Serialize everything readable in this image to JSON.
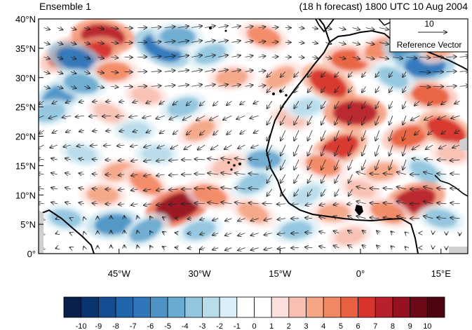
{
  "title_left": "Ensemble 1",
  "title_right": "(18 h forecast) 1800 UTC 10 Aug 2004",
  "reference_vector": {
    "value": "10",
    "label": "Reference Vector"
  },
  "map": {
    "lon_range": [
      -60,
      20
    ],
    "lat_range": [
      0,
      40
    ],
    "lat_ticks": [
      {
        "value": 40,
        "label": "40°N"
      },
      {
        "value": 35,
        "label": "35°N"
      },
      {
        "value": 30,
        "label": "30°N"
      },
      {
        "value": 25,
        "label": "25°N"
      },
      {
        "value": 20,
        "label": "20°N"
      },
      {
        "value": 15,
        "label": "15°N"
      },
      {
        "value": 10,
        "label": "10°N"
      },
      {
        "value": 5,
        "label": "5°N"
      },
      {
        "value": 0,
        "label": "0°"
      }
    ],
    "lon_ticks": [
      {
        "value": -45,
        "label": "45°W"
      },
      {
        "value": -30,
        "label": "30°W"
      },
      {
        "value": -15,
        "label": "15°W"
      },
      {
        "value": 0,
        "label": "0°"
      },
      {
        "value": 15,
        "label": "15°E"
      }
    ],
    "anomalies": [
      {
        "lon": -55,
        "lat": 34,
        "v": 5
      },
      {
        "lon": -48,
        "lat": 37,
        "v": 7
      },
      {
        "lon": -50,
        "lat": 34,
        "v": 6
      },
      {
        "lon": -53,
        "lat": 33,
        "v": -6
      },
      {
        "lon": -46,
        "lat": 31,
        "v": 4
      },
      {
        "lon": -56,
        "lat": 27,
        "v": -5
      },
      {
        "lon": -52,
        "lat": 29,
        "v": -4
      },
      {
        "lon": -58,
        "lat": 24,
        "v": -3
      },
      {
        "lon": -37,
        "lat": 35,
        "v": -6
      },
      {
        "lon": -34,
        "lat": 37,
        "v": -4
      },
      {
        "lon": -28,
        "lat": 34,
        "v": -3
      },
      {
        "lon": -18,
        "lat": 37,
        "v": 4
      },
      {
        "lon": -24,
        "lat": 30,
        "v": 3
      },
      {
        "lon": -15,
        "lat": 30,
        "v": 3
      },
      {
        "lon": -40,
        "lat": 27,
        "v": 2
      },
      {
        "lon": -33,
        "lat": 25,
        "v": -3
      },
      {
        "lon": -47,
        "lat": 24,
        "v": 2
      },
      {
        "lon": -42,
        "lat": 21,
        "v": -2
      },
      {
        "lon": -30,
        "lat": 21,
        "v": 3
      },
      {
        "lon": -52,
        "lat": 17,
        "v": -2
      },
      {
        "lon": -45,
        "lat": 14,
        "v": 3
      },
      {
        "lon": -40,
        "lat": 12,
        "v": 4
      },
      {
        "lon": -48,
        "lat": 10,
        "v": 3
      },
      {
        "lon": -34,
        "lat": 8,
        "v": 8
      },
      {
        "lon": -28,
        "lat": 10,
        "v": 4
      },
      {
        "lon": -46,
        "lat": 5,
        "v": -5
      },
      {
        "lon": -40,
        "lat": 4,
        "v": -4
      },
      {
        "lon": -55,
        "lat": 6,
        "v": -3
      },
      {
        "lon": -30,
        "lat": 4,
        "v": -3
      },
      {
        "lon": -20,
        "lat": 7,
        "v": 3
      },
      {
        "lon": -18,
        "lat": 16,
        "v": -4
      },
      {
        "lon": -20,
        "lat": 12,
        "v": -3
      },
      {
        "lon": -13,
        "lat": 23,
        "v": 2
      },
      {
        "lon": -10,
        "lat": 25,
        "v": -2
      },
      {
        "lon": -6,
        "lat": 29,
        "v": 6
      },
      {
        "lon": -2,
        "lat": 33,
        "v": 5
      },
      {
        "lon": 4,
        "lat": 35,
        "v": 4
      },
      {
        "lon": 9,
        "lat": 34,
        "v": -5
      },
      {
        "lon": 12,
        "lat": 32,
        "v": -6
      },
      {
        "lon": 15,
        "lat": 35,
        "v": 3
      },
      {
        "lon": 13,
        "lat": 27,
        "v": 5
      },
      {
        "lon": 9,
        "lat": 20,
        "v": 5
      },
      {
        "lon": 16,
        "lat": 21,
        "v": 6
      },
      {
        "lon": -1,
        "lat": 24,
        "v": 7
      },
      {
        "lon": -4,
        "lat": 18,
        "v": 6
      },
      {
        "lon": -7,
        "lat": 15,
        "v": 4
      },
      {
        "lon": 4,
        "lat": 14,
        "v": 3
      },
      {
        "lon": 12,
        "lat": 14,
        "v": -3
      },
      {
        "lon": 17,
        "lat": 17,
        "v": 2
      },
      {
        "lon": 10,
        "lat": 9,
        "v": 7
      },
      {
        "lon": 5,
        "lat": 7,
        "v": 4
      },
      {
        "lon": -5,
        "lat": 7,
        "v": 3
      },
      {
        "lon": -10,
        "lat": 10,
        "v": -2
      },
      {
        "lon": 15,
        "lat": 6,
        "v": -3
      },
      {
        "lon": -2,
        "lat": 3,
        "v": 2
      },
      {
        "lon": 6,
        "lat": 30,
        "v": -3
      },
      {
        "lon": -38,
        "lat": 17,
        "v": -2
      },
      {
        "lon": -25,
        "lat": 15,
        "v": 2
      },
      {
        "lon": 0,
        "lat": 11,
        "v": 2
      },
      {
        "lon": -12,
        "lat": 4,
        "v": -3
      }
    ],
    "wind_grid": {
      "lon_step": 2.5,
      "lat_step": 2.5
    }
  },
  "colorbar": {
    "labels": [
      "-10",
      "-9",
      "-8",
      "-7",
      "-6",
      "-5",
      "-4",
      "-3",
      "-2",
      "-1",
      "0",
      "1",
      "2",
      "3",
      "4",
      "5",
      "6",
      "7",
      "8",
      "9",
      "10"
    ],
    "colors": [
      "#08204a",
      "#0a3470",
      "#164c91",
      "#2166ac",
      "#2f76bb",
      "#4d93c6",
      "#6aabd0",
      "#92c5de",
      "#b9dcea",
      "#d9eef6",
      "#ffffff",
      "#ffffff",
      "#fde0dc",
      "#f8c0b2",
      "#f4a586",
      "#f28863",
      "#e8603f",
      "#d6342c",
      "#b8212b",
      "#96101f",
      "#6b0a16",
      "#4d0611"
    ]
  }
}
